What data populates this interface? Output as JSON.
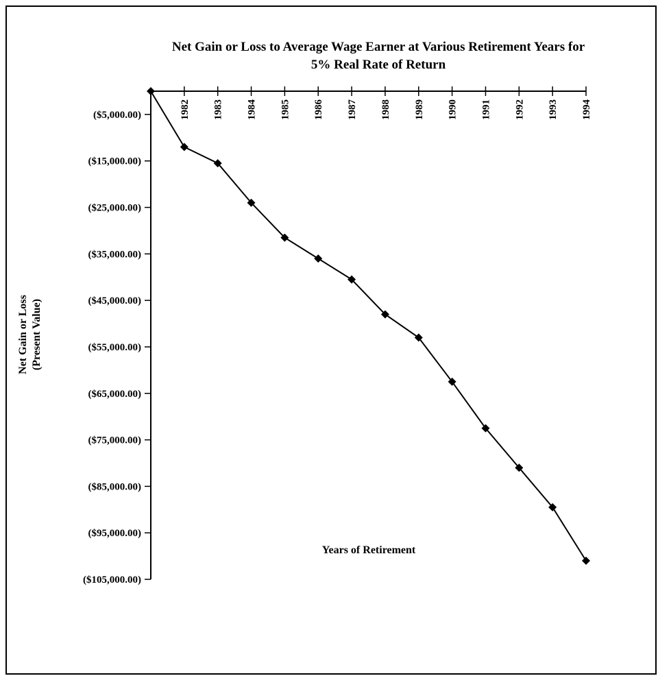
{
  "chart_data": {
    "type": "line",
    "title": [
      "Net Gain or Loss to Average Wage Earner at Various Retirement Years for",
      "5% Real Rate of Return"
    ],
    "x_label": "Years of Retirement",
    "y_label": [
      "Net Gain or Loss",
      "(Present Value)"
    ],
    "categories": [
      null,
      "1982",
      "1983",
      "1984",
      "1985",
      "1986",
      "1987",
      "1988",
      "1989",
      "1990",
      "1991",
      "1992",
      "1993",
      "1994"
    ],
    "series": [
      {
        "color": "#000000",
        "values": [
          0,
          -12000,
          -15500,
          -24000,
          -31500,
          -36000,
          -40500,
          -48000,
          -53000,
          -62500,
          -72500,
          -81000,
          -89500,
          -101000
        ]
      }
    ],
    "ylim": [
      -105000,
      0
    ],
    "yticks": [
      {
        "value": -5000,
        "label": "($5,000.00)"
      },
      {
        "value": -15000,
        "label": "($15,000.00)"
      },
      {
        "value": -25000,
        "label": "($25,000.00)"
      },
      {
        "value": -35000,
        "label": "($35,000.00)"
      },
      {
        "value": -45000,
        "label": "($45,000.00)"
      },
      {
        "value": -55000,
        "label": "($55,000.00)"
      },
      {
        "value": -65000,
        "label": "($65,000.00)"
      },
      {
        "value": -75000,
        "label": "($75,000.00)"
      },
      {
        "value": -85000,
        "label": "($85,000.00)"
      },
      {
        "value": -95000,
        "label": "($95,000.00)"
      },
      {
        "value": -105000,
        "label": "($105,000.00)"
      }
    ],
    "grid": false
  }
}
